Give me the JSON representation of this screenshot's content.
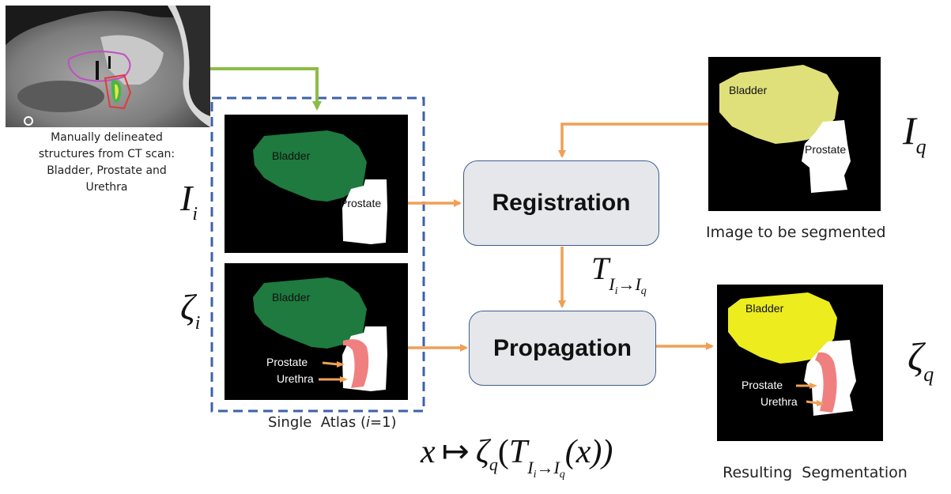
{
  "ct_scan": {
    "caption_lines": [
      "Manually delineated",
      "structures from CT scan:",
      "Bladder, Prostate and",
      "Urethra"
    ]
  },
  "atlas": {
    "image_label": {
      "base": "I",
      "sub": "i"
    },
    "seg_label": {
      "base": "ζ",
      "sub": "i"
    },
    "bladder": "Bladder",
    "prostate": "Prostate",
    "urethra": "Urethra",
    "caption_prefix": "Single  Atlas (",
    "caption_index": "i",
    "caption_suffix": "=1)"
  },
  "process": {
    "registration": "Registration",
    "propagation": "Propagation",
    "transform": {
      "base": "T",
      "sub_from": "I",
      "sub_from_sub": "i",
      "arrow": "→",
      "sub_to": "I",
      "sub_to_sub": "q"
    }
  },
  "query": {
    "label": {
      "base": "I",
      "sub": "q"
    },
    "bladder": "Bladder",
    "prostate": "Prostate",
    "caption": "Image to be segmented"
  },
  "result": {
    "label": {
      "base": "ζ",
      "sub": "q"
    },
    "bladder": "Bladder",
    "prostate": "Prostate",
    "urethra": "Urethra",
    "caption": "Resulting  Segmentation"
  },
  "formula": {
    "x": "x",
    "mapsto": "↦",
    "zeta": "ζ",
    "zeta_sub": "q",
    "open": "(",
    "T": "T",
    "T_sub": "I",
    "T_sub_i": "i",
    "arrow": "→",
    "T_sub2": "I",
    "T_sub2_q": "q",
    "inner": "(x))"
  },
  "colors": {
    "atlas_bladder": "#1e7a3f",
    "query_bladder": "#dfe07a",
    "result_bladder": "#ecec1f",
    "urethra": "#f08080",
    "arrow_orange": "#f0a055",
    "arrow_green": "#8cbc48",
    "dashed_border": "#3d62a8",
    "box_border": "#3e5d8f",
    "box_fill": "#e6e7ea"
  }
}
